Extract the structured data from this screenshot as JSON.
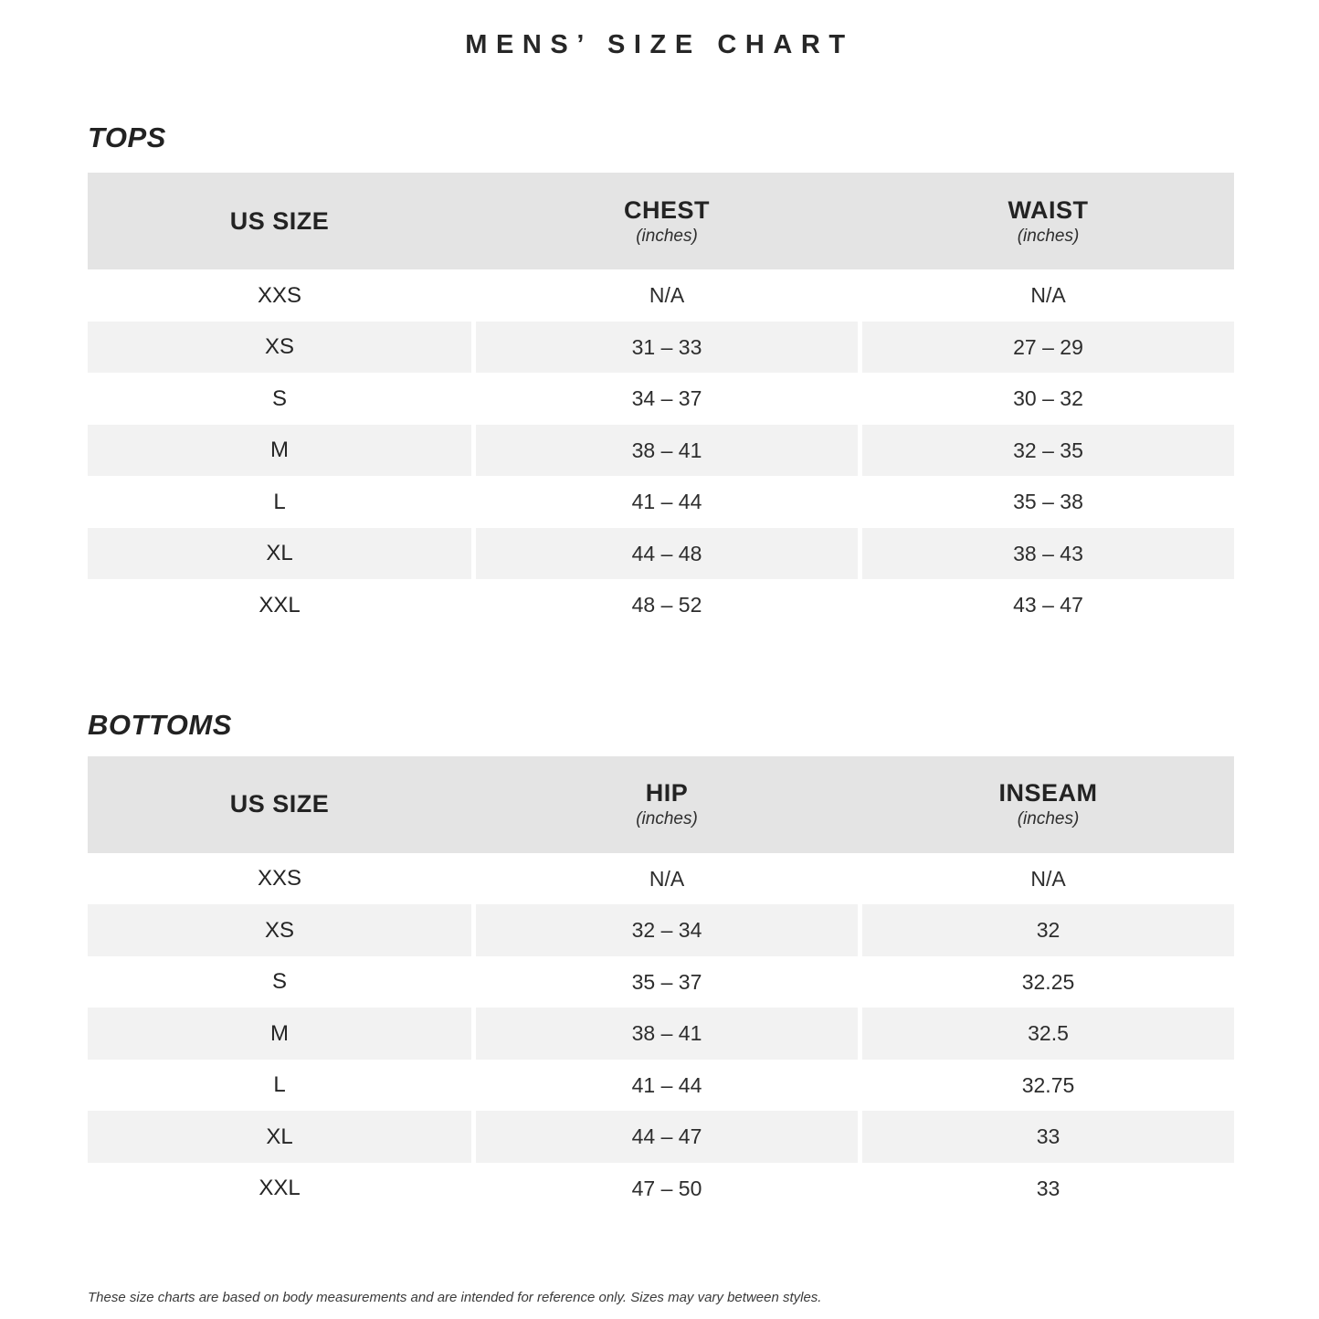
{
  "page": {
    "title": "MENS’ SIZE CHART",
    "footnote": "These size charts are based on body measurements and are intended for reference only. Sizes may vary between styles."
  },
  "colors": {
    "header_bg": "#e4e4e4",
    "stripe_bg": "#f2f2f2",
    "text": "#272727"
  },
  "tables": [
    {
      "section": "TOPS",
      "columns": [
        {
          "label": "US SIZE",
          "sub": ""
        },
        {
          "label": "CHEST",
          "sub": "(inches)"
        },
        {
          "label": "WAIST",
          "sub": "(inches)"
        }
      ],
      "rows": [
        [
          "XXS",
          "N/A",
          "N/A"
        ],
        [
          "XS",
          "31 – 33",
          "27 – 29"
        ],
        [
          "S",
          "34 – 37",
          "30 – 32"
        ],
        [
          "M",
          "38 – 41",
          "32 – 35"
        ],
        [
          "L",
          "41 – 44",
          "35 – 38"
        ],
        [
          "XL",
          "44 – 48",
          "38 – 43"
        ],
        [
          "XXL",
          "48 – 52",
          "43 – 47"
        ]
      ]
    },
    {
      "section": "BOTTOMS",
      "columns": [
        {
          "label": "US SIZE",
          "sub": ""
        },
        {
          "label": "HIP",
          "sub": "(inches)"
        },
        {
          "label": "INSEAM",
          "sub": "(inches)"
        }
      ],
      "rows": [
        [
          "XXS",
          "N/A",
          "N/A"
        ],
        [
          "XS",
          "32 – 34",
          "32"
        ],
        [
          "S",
          "35 – 37",
          "32.25"
        ],
        [
          "M",
          "38 – 41",
          "32.5"
        ],
        [
          "L",
          "41 – 44",
          "32.75"
        ],
        [
          "XL",
          "44 – 47",
          "33"
        ],
        [
          "XXL",
          "47 – 50",
          "33"
        ]
      ]
    }
  ]
}
